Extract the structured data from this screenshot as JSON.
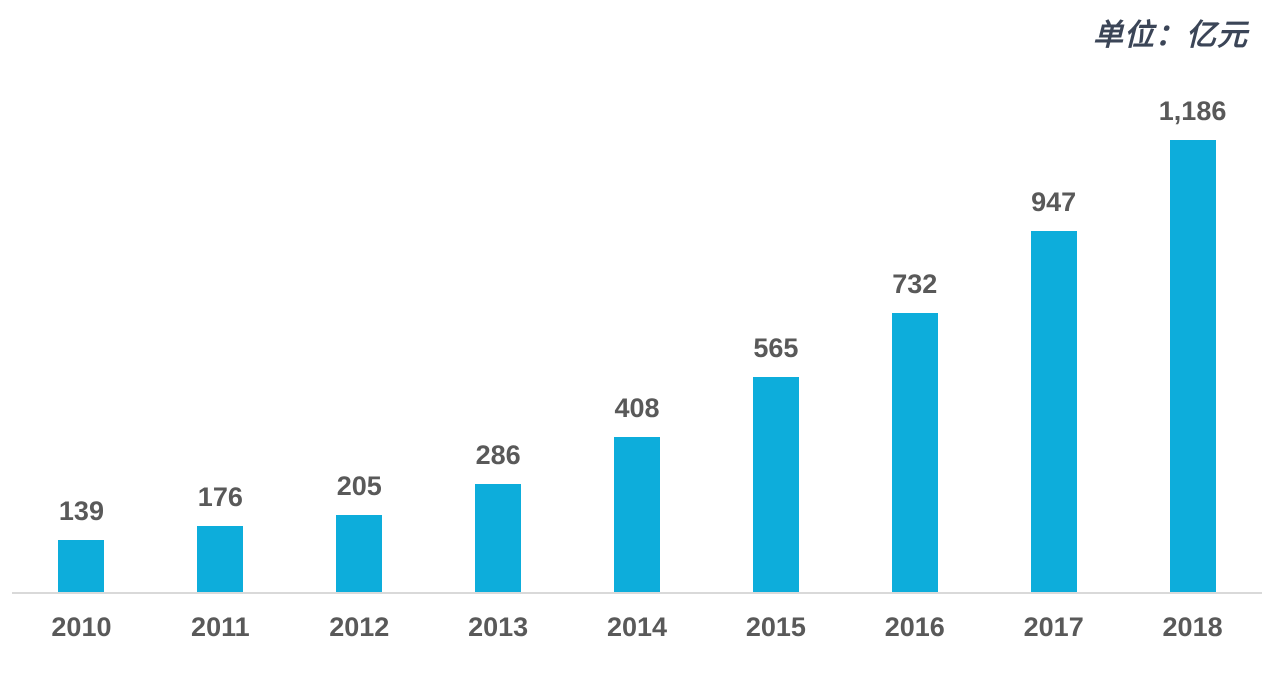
{
  "unit_label": "单位：亿元",
  "colors": {
    "bar": "#0daddb",
    "text": "#595959",
    "axis": "#d9d9d9",
    "unit_text": "#3b4557",
    "background": "#ffffff"
  },
  "chart_data": {
    "type": "bar",
    "categories": [
      "2010",
      "2011",
      "2012",
      "2013",
      "2014",
      "2015",
      "2016",
      "2017",
      "2018"
    ],
    "values": [
      139,
      176,
      205,
      286,
      408,
      565,
      732,
      947,
      1186
    ],
    "value_labels": [
      "139",
      "176",
      "205",
      "286",
      "408",
      "565",
      "732",
      "947",
      "1,186"
    ],
    "title": "",
    "xlabel": "",
    "ylabel": "",
    "unit": "单位：亿元",
    "ylim": [
      0,
      1250
    ],
    "grid": false,
    "legend": null,
    "data_labels": true,
    "bar_color": "#0daddb"
  }
}
